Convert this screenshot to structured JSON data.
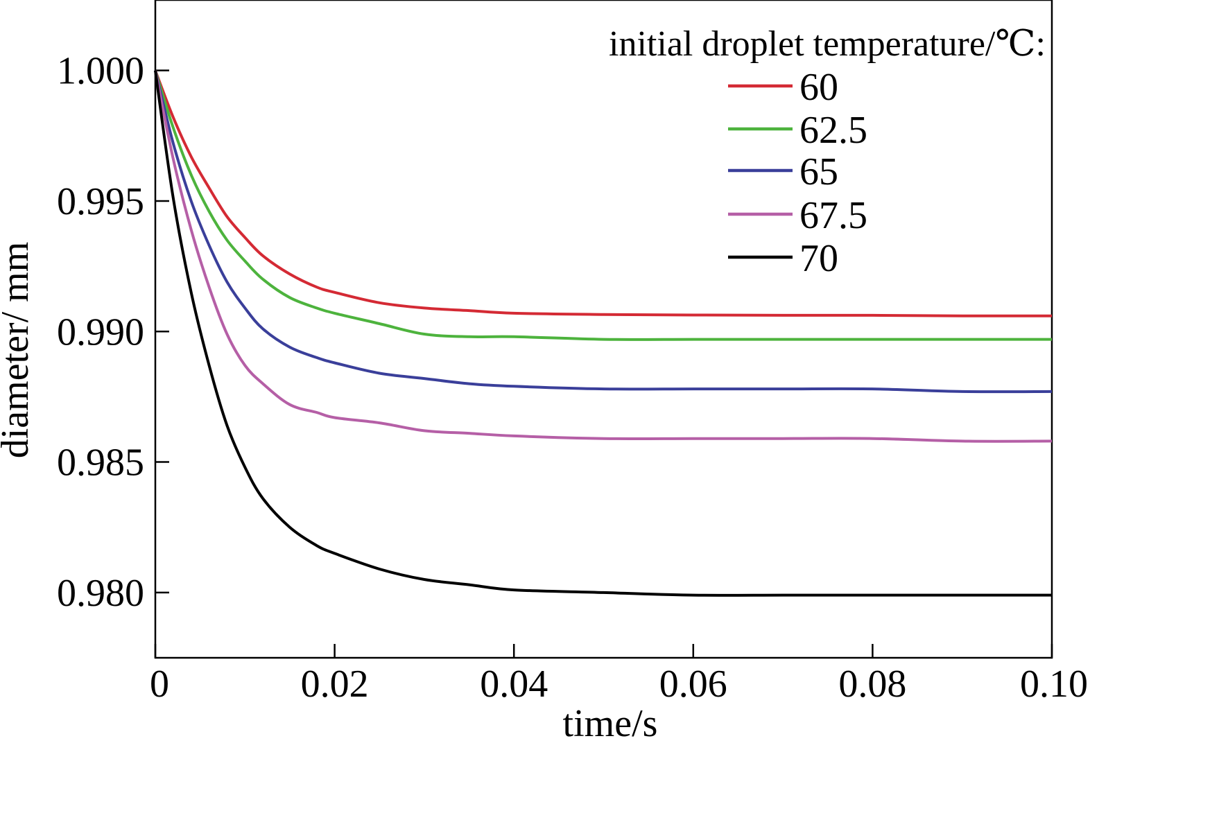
{
  "chart_data": {
    "type": "line",
    "xlabel": "time/s",
    "ylabel": "diameter/ mm",
    "xlim": [
      0,
      0.1
    ],
    "ylim": [
      0.9775,
      1.0027
    ],
    "xticks": [
      0,
      0.02,
      0.04,
      0.06,
      0.08,
      0.1
    ],
    "xtick_labels": [
      "0",
      "0.02",
      "0.04",
      "0.06",
      "0.08",
      "0.10"
    ],
    "yticks": [
      0.98,
      0.985,
      0.99,
      0.995,
      1.0
    ],
    "ytick_labels": [
      "0.980",
      "0.985",
      "0.990",
      "0.995",
      "1.000"
    ],
    "grid": false,
    "legend": {
      "title": "initial droplet temperature/℃:",
      "position": "top-right"
    },
    "x": [
      0,
      0.002,
      0.004,
      0.006,
      0.008,
      0.01,
      0.012,
      0.015,
      0.018,
      0.02,
      0.025,
      0.03,
      0.035,
      0.04,
      0.05,
      0.06,
      0.07,
      0.08,
      0.09,
      0.1
    ],
    "series": [
      {
        "name": "60",
        "color": "#d42a34",
        "values": [
          1.0,
          0.9982,
          0.9967,
          0.9955,
          0.9944,
          0.9936,
          0.9929,
          0.9922,
          0.9917,
          0.9915,
          0.9911,
          0.9909,
          0.9908,
          0.9907,
          0.99065,
          0.99063,
          0.99062,
          0.99062,
          0.9906,
          0.9906
        ]
      },
      {
        "name": "62.5",
        "color": "#4db33d",
        "values": [
          1.0,
          0.9978,
          0.996,
          0.9946,
          0.9935,
          0.9927,
          0.992,
          0.9913,
          0.9909,
          0.9907,
          0.9903,
          0.9899,
          0.9898,
          0.9898,
          0.9897,
          0.9897,
          0.9897,
          0.9897,
          0.9897,
          0.9897
        ]
      },
      {
        "name": "65",
        "color": "#3a3f9a",
        "values": [
          1.0,
          0.9972,
          0.995,
          0.9933,
          0.9919,
          0.9909,
          0.9901,
          0.9894,
          0.989,
          0.9888,
          0.9884,
          0.9882,
          0.988,
          0.9879,
          0.9878,
          0.9878,
          0.9878,
          0.9878,
          0.9877,
          0.9877
        ]
      },
      {
        "name": "67.5",
        "color": "#b55fa6",
        "values": [
          1.0,
          0.9966,
          0.9939,
          0.9917,
          0.9899,
          0.9887,
          0.988,
          0.9872,
          0.9869,
          0.9867,
          0.9865,
          0.9862,
          0.9861,
          0.986,
          0.9859,
          0.9859,
          0.9859,
          0.9859,
          0.9858,
          0.9858
        ]
      },
      {
        "name": "70",
        "color": "#000000",
        "values": [
          1.0,
          0.9951,
          0.9915,
          0.9887,
          0.9864,
          0.9848,
          0.9836,
          0.9825,
          0.9818,
          0.9815,
          0.9809,
          0.9805,
          0.9803,
          0.9801,
          0.98,
          0.9799,
          0.9799,
          0.9799,
          0.9799,
          0.9799
        ]
      }
    ]
  }
}
